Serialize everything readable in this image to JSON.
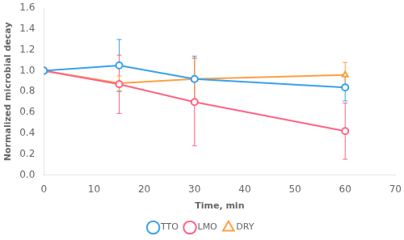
{
  "chart_data": {
    "type": "line",
    "xlabel": "Time, min",
    "ylabel": "Normalized microbial decay",
    "xlim": [
      0,
      70
    ],
    "ylim": [
      0,
      1.6
    ],
    "xticks": [
      0,
      10,
      20,
      30,
      40,
      50,
      60,
      70
    ],
    "yticks": [
      {
        "value": 0,
        "label": "0.0"
      },
      0.2,
      0.4,
      0.6,
      0.8,
      {
        "value": 1,
        "label": "1.0"
      },
      1.2,
      1.4,
      1.6
    ],
    "grid": false,
    "legend": "bottom",
    "series": [
      {
        "name": "TTO",
        "marker": "circle",
        "x": [
          0,
          15,
          30,
          60
        ],
        "values": [
          1.0,
          1.05,
          0.92,
          0.84
        ],
        "yerr": [
          0.0,
          0.25,
          0.22,
          0.13
        ]
      },
      {
        "name": "LMO",
        "marker": "circle",
        "x": [
          0,
          15,
          30,
          60
        ],
        "values": [
          1.0,
          0.87,
          0.7,
          0.42
        ],
        "yerr": [
          0.0,
          0.28,
          0.42,
          0.27
        ]
      },
      {
        "name": "DRY",
        "marker": "triangle",
        "x": [
          0,
          15,
          30,
          60
        ],
        "values": [
          1.0,
          0.88,
          0.92,
          0.96
        ],
        "yerr": [
          0.0,
          0.07,
          0.2,
          0.12
        ]
      }
    ]
  }
}
